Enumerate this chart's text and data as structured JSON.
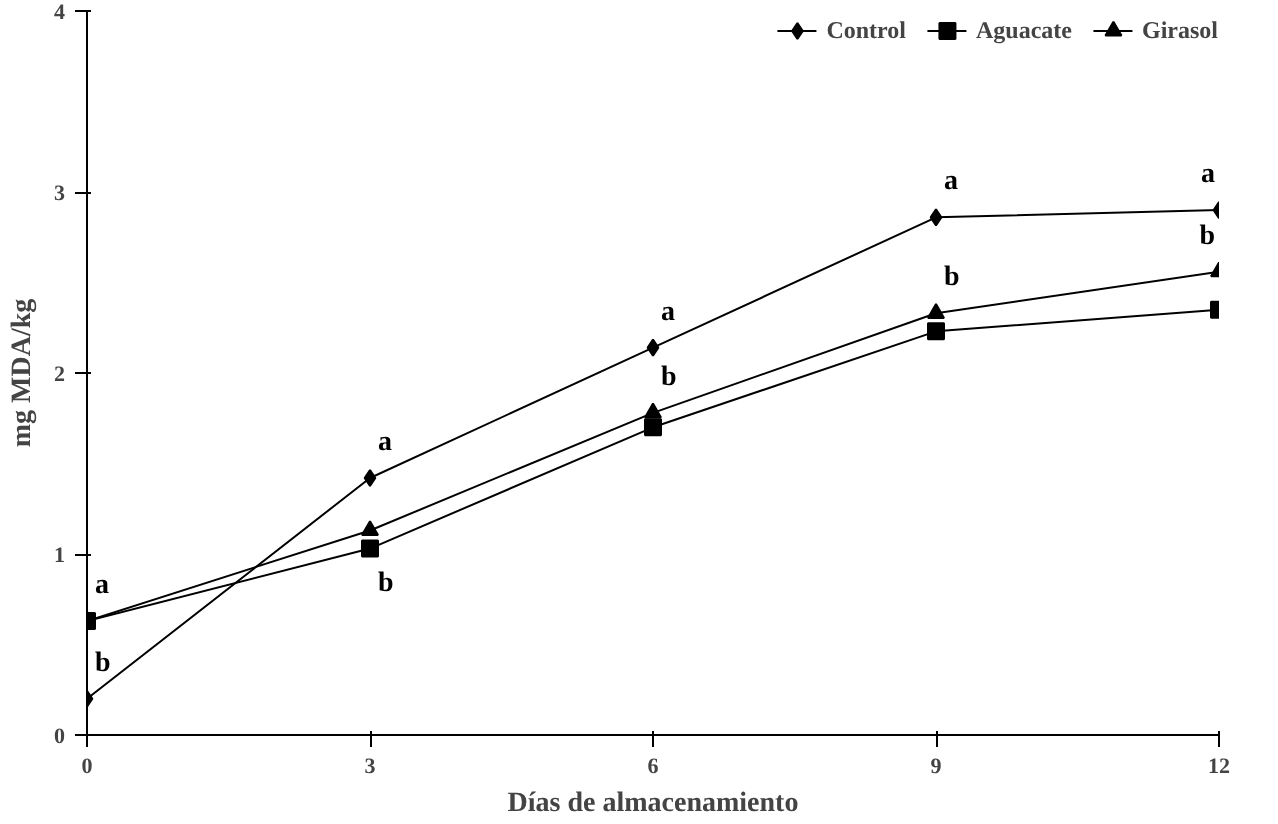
{
  "chart_data": {
    "type": "line",
    "xlabel": "Días de almacenamiento",
    "ylabel": "mg MDA/kg",
    "x": [
      0,
      3,
      6,
      9,
      12
    ],
    "series": [
      {
        "name": "Control",
        "color": "#000000",
        "marker": "diamond",
        "values": [
          0.2,
          1.42,
          2.14,
          2.86,
          2.9
        ]
      },
      {
        "name": "Aguacate",
        "color": "#000000",
        "marker": "square",
        "values": [
          0.63,
          1.03,
          1.7,
          2.23,
          2.35
        ]
      },
      {
        "name": "Girasol",
        "color": "#000000",
        "marker": "triangle",
        "values": [
          0.63,
          1.13,
          1.78,
          2.33,
          2.56
        ]
      }
    ],
    "xlim": [
      0,
      12
    ],
    "ylim": [
      0,
      4
    ],
    "xticks": [
      0,
      3,
      6,
      9,
      12
    ],
    "yticks": [
      0,
      1,
      2,
      3,
      4
    ],
    "annotations": [
      {
        "text": "a",
        "x": 0,
        "y": 0.63
      },
      {
        "text": "b",
        "x": 0,
        "y": 0.2
      },
      {
        "text": "a",
        "x": 3,
        "y": 1.42
      },
      {
        "text": "b",
        "x": 3,
        "y": 1.03
      },
      {
        "text": "a",
        "x": 6,
        "y": 2.14
      },
      {
        "text": "b",
        "x": 6,
        "y": 1.78
      },
      {
        "text": "a",
        "x": 9,
        "y": 2.86
      },
      {
        "text": "b",
        "x": 9,
        "y": 2.33
      },
      {
        "text": "a",
        "x": 12,
        "y": 2.9
      },
      {
        "text": "b",
        "x": 12,
        "y": 2.56
      }
    ],
    "grid": false,
    "legend": "top right",
    "line_style": "solid"
  }
}
